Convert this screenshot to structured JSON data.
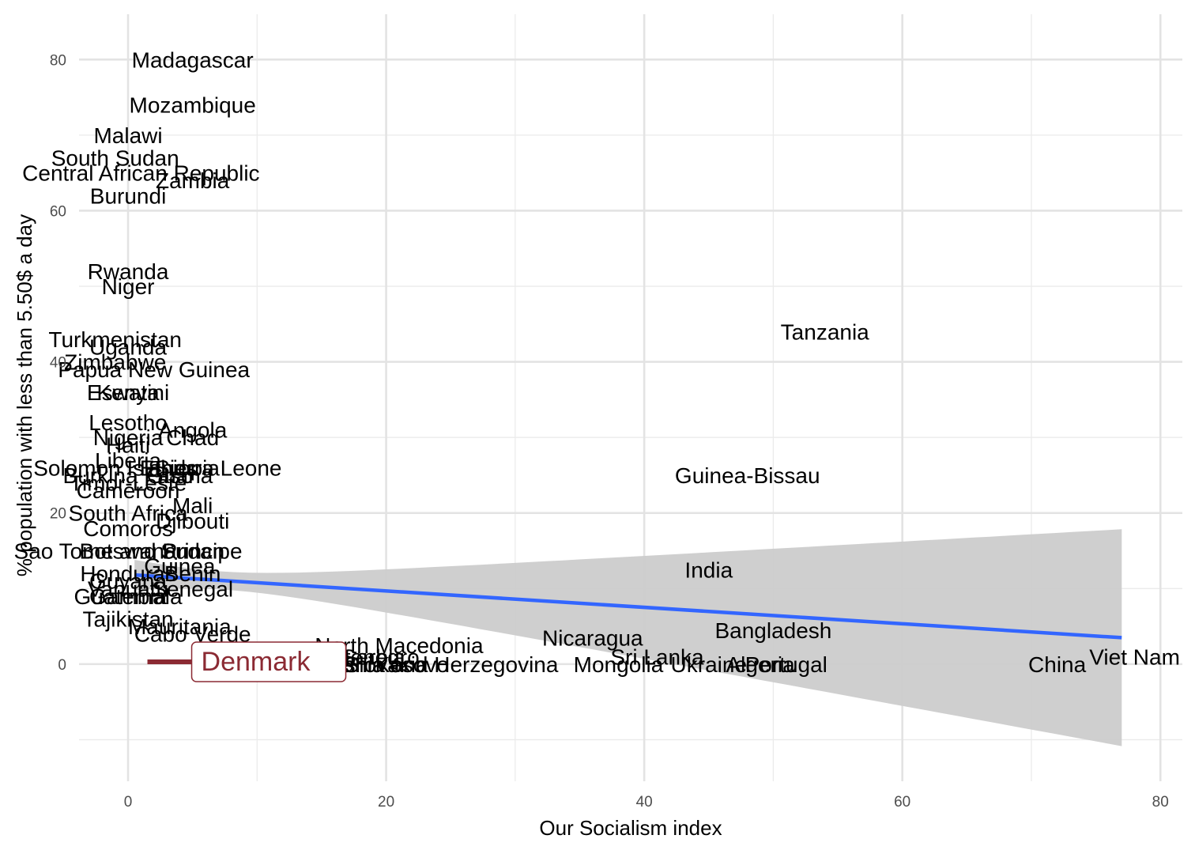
{
  "chart_data": {
    "type": "scatter",
    "xlabel": "Our Socialism index",
    "ylabel": "% population with less than 5.50$ a day",
    "xlim": [
      -3.8,
      81.7
    ],
    "ylim": [
      -15.5,
      86
    ],
    "x_ticks": [
      0,
      20,
      40,
      60,
      80
    ],
    "y_ticks": [
      0,
      20,
      40,
      60,
      80
    ],
    "grid": true,
    "regression": {
      "x_range": [
        0.5,
        77
      ],
      "fit": [
        11.8,
        3.5
      ],
      "band_lower": [
        9.8,
        -10.8
      ],
      "band_upper": [
        13.8,
        17.9
      ],
      "color": "#3366ff",
      "band_color": "#cccccc"
    },
    "highlight": {
      "label": "Denmark",
      "x": 1.5,
      "y": 0.3,
      "color": "#8b2a33"
    },
    "points": [
      {
        "label": "Madagascar",
        "x": 5,
        "y": 80
      },
      {
        "label": "Mozambique",
        "x": 5,
        "y": 74
      },
      {
        "label": "Malawi",
        "x": 0,
        "y": 70
      },
      {
        "label": "South Sudan",
        "x": -1,
        "y": 67
      },
      {
        "label": "Central African Republic",
        "x": 1,
        "y": 65
      },
      {
        "label": "Zambia",
        "x": 5,
        "y": 64
      },
      {
        "label": "Burundi",
        "x": 0,
        "y": 62
      },
      {
        "label": "Rwanda",
        "x": 0,
        "y": 52
      },
      {
        "label": "Niger",
        "x": 0,
        "y": 50
      },
      {
        "label": "Turkmenistan",
        "x": -1,
        "y": 43
      },
      {
        "label": "Uganda",
        "x": 0,
        "y": 42
      },
      {
        "label": "Zimbabwe",
        "x": -1,
        "y": 40
      },
      {
        "label": "Papua New Guinea",
        "x": 2,
        "y": 39
      },
      {
        "label": "Kenya",
        "x": 0,
        "y": 36
      },
      {
        "label": "Eswatini",
        "x": 0,
        "y": 36
      },
      {
        "label": "Lesotho",
        "x": 0,
        "y": 32
      },
      {
        "label": "Nigeria",
        "x": 0,
        "y": 30
      },
      {
        "label": "Angola",
        "x": 5,
        "y": 31
      },
      {
        "label": "Chad",
        "x": 5,
        "y": 30
      },
      {
        "label": "Haiti",
        "x": 0,
        "y": 29
      },
      {
        "label": "Liberia",
        "x": 0,
        "y": 27
      },
      {
        "label": "Solomon Islands",
        "x": -1,
        "y": 26
      },
      {
        "label": "Ethiopia",
        "x": 4,
        "y": 26
      },
      {
        "label": "Sierra Leone",
        "x": 7,
        "y": 26
      },
      {
        "label": "Burkina Faso",
        "x": 0,
        "y": 25
      },
      {
        "label": "Ghana",
        "x": 4,
        "y": 25
      },
      {
        "label": "Timor-Leste",
        "x": 0,
        "y": 24
      },
      {
        "label": "Cameroon",
        "x": 0,
        "y": 23
      },
      {
        "label": "South Africa",
        "x": 0,
        "y": 20
      },
      {
        "label": "Mali",
        "x": 5,
        "y": 21
      },
      {
        "label": "Djibouti",
        "x": 5,
        "y": 19
      },
      {
        "label": "Comoros",
        "x": 0,
        "y": 18
      },
      {
        "label": "Sao Tome and Principe",
        "x": 0,
        "y": 15
      },
      {
        "label": "Botswana",
        "x": 0,
        "y": 15
      },
      {
        "label": "Sudan",
        "x": 5,
        "y": 15
      },
      {
        "label": "Guinea",
        "x": 4,
        "y": 13
      },
      {
        "label": "Honduras",
        "x": 0,
        "y": 12
      },
      {
        "label": "Benin",
        "x": 5,
        "y": 12
      },
      {
        "label": "Guyana",
        "x": 0,
        "y": 11
      },
      {
        "label": "Senegal",
        "x": 5,
        "y": 10
      },
      {
        "label": "Vanuatu",
        "x": 0,
        "y": 10
      },
      {
        "label": "Gambia",
        "x": 0,
        "y": 9
      },
      {
        "label": "Guatemala",
        "x": 0,
        "y": 9
      },
      {
        "label": "Tajikistan",
        "x": 0,
        "y": 6
      },
      {
        "label": "Mauritania",
        "x": 4,
        "y": 5
      },
      {
        "label": "Cabo Verde",
        "x": 5,
        "y": 4
      },
      {
        "label": "North Macedonia",
        "x": 21,
        "y": 2.5
      },
      {
        "label": "Nicaragua",
        "x": 36,
        "y": 3.5
      },
      {
        "label": "Bangladesh",
        "x": 50,
        "y": 4.5
      },
      {
        "label": "Tanzania",
        "x": 54,
        "y": 44
      },
      {
        "label": "Guinea-Bissau",
        "x": 48,
        "y": 25
      },
      {
        "label": "India",
        "x": 45,
        "y": 12.5
      },
      {
        "label": "Sri Lanka",
        "x": 41,
        "y": 1
      },
      {
        "label": "Mongolia",
        "x": 38,
        "y": 0
      },
      {
        "label": "Portugal",
        "x": 51,
        "y": 0
      },
      {
        "label": "Ukraine",
        "x": 45,
        "y": 0
      },
      {
        "label": "Algeria",
        "x": 49,
        "y": 0
      },
      {
        "label": "Bosnia and Herzegovina",
        "x": 24,
        "y": 0
      },
      {
        "label": "Montenegro",
        "x": 18,
        "y": 1
      },
      {
        "label": "Kosovo",
        "x": 22,
        "y": 0
      },
      {
        "label": "Slovakia",
        "x": 20,
        "y": 0
      },
      {
        "label": "Serbia",
        "x": 19,
        "y": 1
      },
      {
        "label": "Albania",
        "x": 17,
        "y": 0
      },
      {
        "label": "Romania",
        "x": 12,
        "y": 1
      },
      {
        "label": "China",
        "x": 72,
        "y": 0
      },
      {
        "label": "Viet Nam",
        "x": 78,
        "y": 1
      }
    ]
  }
}
